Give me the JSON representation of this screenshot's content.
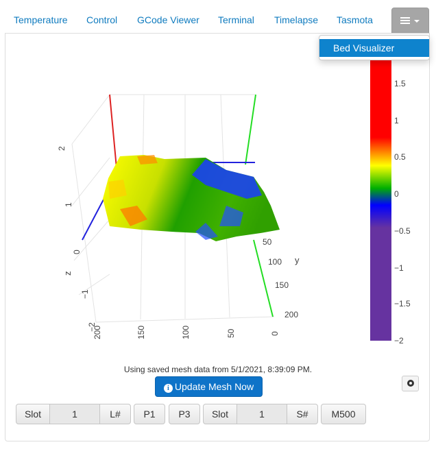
{
  "tabs": [
    "Temperature",
    "Control",
    "GCode Viewer",
    "Terminal",
    "Timelapse",
    "Tasmota"
  ],
  "menu": {
    "icon": "hamburger-icon",
    "dropdown_item": "Bed Visualizer"
  },
  "colorbar": {
    "ticks": [
      "1.5",
      "1",
      "0.5",
      "0",
      "−0.5",
      "−1",
      "−1.5",
      "−2"
    ],
    "colors": [
      "#ff0000",
      "#ffff00",
      "#00b000",
      "#0000ff",
      "#6633a0"
    ]
  },
  "axes": {
    "y_label": "y",
    "z_label": "z",
    "y_ticks": [
      "50",
      "100",
      "150",
      "200"
    ],
    "x_ticks": [
      "200",
      "150",
      "100",
      "50",
      "0"
    ],
    "z_ticks": [
      "2",
      "1",
      "0",
      "−1",
      "−2"
    ]
  },
  "status_text": "Using saved mesh data from 5/1/2021, 8:39:09 PM.",
  "update_button": "Update Mesh Now",
  "controls": {
    "slot_label_1": "Slot",
    "slot_value_1": "1",
    "load_btn": "L#",
    "p1_btn": "P1",
    "p3_btn": "P3",
    "slot_label_2": "Slot",
    "slot_value_2": "1",
    "save_btn": "S#",
    "m500_btn": "M500"
  }
}
